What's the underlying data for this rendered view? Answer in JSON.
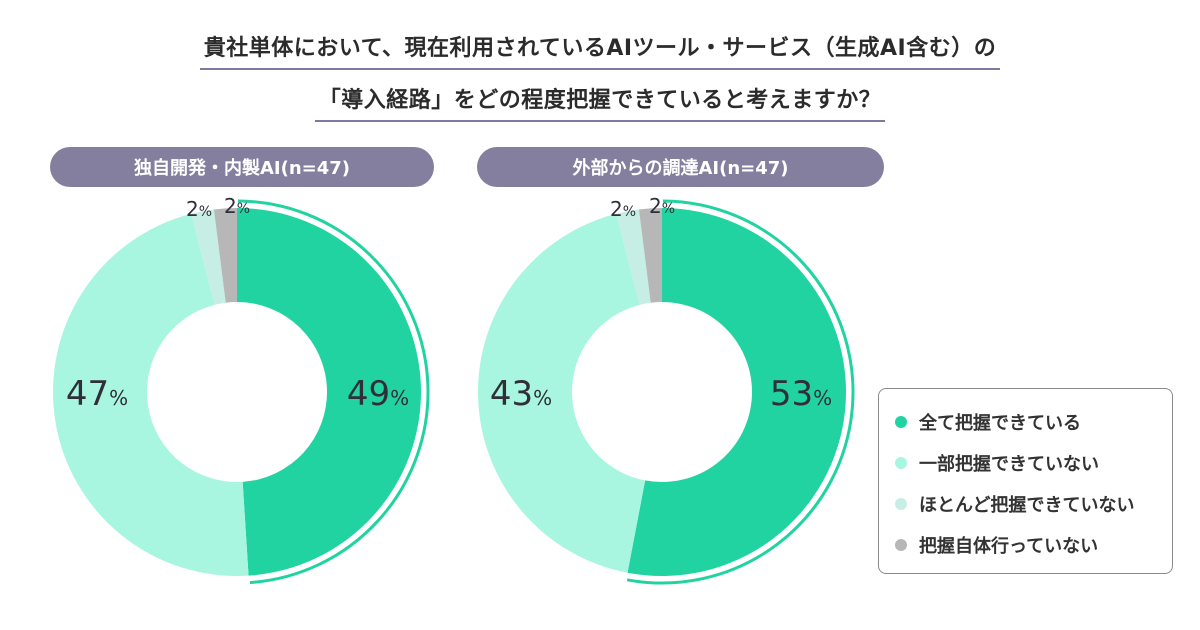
{
  "title": {
    "line1": "貴社単体において、現在利用されているAIツール・サービス（生成AI含む）の",
    "line2": "「導入経路」をどの程度把握できていると考えますか？"
  },
  "colors": {
    "all": "#22d3a2",
    "partial": "#a8f6df",
    "barely": "#c7eee4",
    "none": "#b7b7b7",
    "pill": "#847f9e"
  },
  "chart_data": [
    {
      "type": "pie",
      "title": "独自開発・内製AI(n=47)",
      "unit": "%",
      "slices": [
        {
          "label": "全て把握できている",
          "value": 49
        },
        {
          "label": "一部把握できていない",
          "value": 47
        },
        {
          "label": "ほとんど把握できていない",
          "value": 2
        },
        {
          "label": "把握自体行っていない",
          "value": 2
        }
      ]
    },
    {
      "type": "pie",
      "title": "外部からの調達AI(n=47)",
      "unit": "%",
      "slices": [
        {
          "label": "全て把握できている",
          "value": 53
        },
        {
          "label": "一部把握できていない",
          "value": 43
        },
        {
          "label": "ほとんど把握できていない",
          "value": 2
        },
        {
          "label": "把握自体行っていない",
          "value": 2
        }
      ]
    }
  ],
  "legend": [
    {
      "label": "全て把握できている",
      "color_key": "all"
    },
    {
      "label": "一部把握できていない",
      "color_key": "partial"
    },
    {
      "label": "ほとんど把握できていない",
      "color_key": "barely"
    },
    {
      "label": "把握自体行っていない",
      "color_key": "none"
    }
  ]
}
